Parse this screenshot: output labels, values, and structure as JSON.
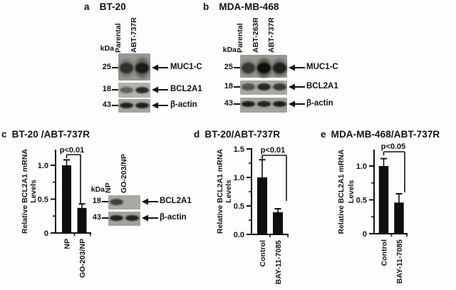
{
  "figure": {
    "background": "#ffffff",
    "text_color": "#121212"
  },
  "panel_a": {
    "label": "a",
    "title": "BT-20",
    "kda_label": "kDa",
    "lanes": [
      "Parental",
      "ABT-737R"
    ],
    "rows": [
      {
        "marker": "25",
        "protein": "MUC1-C",
        "band_intensities": [
          0.55,
          0.8
        ]
      },
      {
        "marker": "18",
        "protein": "BCL2A1",
        "band_intensities": [
          0.35,
          0.8
        ]
      },
      {
        "marker": "43",
        "protein": "β-actin",
        "band_intensities": [
          0.88,
          0.88
        ]
      }
    ]
  },
  "panel_b": {
    "label": "b",
    "title": "MDA-MB-468",
    "kda_label": "kDa",
    "lanes": [
      "Parental",
      "ABT-263R",
      "ABT-737R"
    ],
    "rows": [
      {
        "marker": "25",
        "protein": "MUC1-C",
        "band_intensities": [
          0.5,
          1.0,
          0.75
        ]
      },
      {
        "marker": "18",
        "protein": "BCL2A1",
        "band_intensities": [
          0.45,
          0.8,
          0.65
        ]
      },
      {
        "marker": "43",
        "protein": "β-actin",
        "band_intensities": [
          0.9,
          0.85,
          0.9
        ]
      }
    ]
  },
  "panel_c": {
    "label": "c",
    "title": "BT-20 /ABT-737R",
    "blot": {
      "kda_label": "kDa",
      "lanes": [
        "NP",
        "GO-203/NP"
      ],
      "rows": [
        {
          "marker": "18",
          "protein": "BCL2A1",
          "band_intensities": [
            0.6,
            0
          ]
        },
        {
          "marker": "43",
          "protein": "β-actin",
          "band_intensities": [
            0.88,
            0.85
          ]
        }
      ]
    }
  },
  "panel_d": {
    "label": "d",
    "title": "BT-20/ABT-737R"
  },
  "panel_e": {
    "label": "e",
    "title": "MDA-MB-468/ABT-737R"
  },
  "chart_data": [
    {
      "panel": "c",
      "type": "bar",
      "title": "BT-20 /ABT-737R",
      "categories": [
        "NP",
        "GO-203/NP"
      ],
      "values": [
        1.0,
        0.37
      ],
      "errors": [
        0.08,
        0.06
      ],
      "ylabel": "Relative BCL2A1 mRNA Levels",
      "yticks": [
        0,
        0.5,
        1.0
      ],
      "ytick_labels": [
        "0",
        "0.5",
        "1.0"
      ],
      "ylim": [
        0,
        1.23
      ],
      "grid": false,
      "legend": null,
      "significance": "p<0.01",
      "bar_color": "#0e0e0e"
    },
    {
      "panel": "d",
      "type": "bar",
      "title": "BT-20/ABT-737R",
      "categories": [
        "Control",
        "BAY-11-7085"
      ],
      "values": [
        1.0,
        0.39
      ],
      "errors": [
        0.31,
        0.06
      ],
      "ylabel": "Relative BCL2A1 mRNA Levels",
      "yticks": [
        0,
        0.5,
        1.0,
        1.5
      ],
      "ytick_labels": [
        "0.0",
        "0.5",
        "1.0",
        "1.5"
      ],
      "ylim": [
        0,
        1.51
      ],
      "grid": false,
      "legend": null,
      "significance": "p<0.01",
      "bar_color": "#0e0e0e"
    },
    {
      "panel": "e",
      "type": "bar",
      "title": "MDA-MB-468/ABT-737R",
      "categories": [
        "Control",
        "BAY-11-7085"
      ],
      "values": [
        1.0,
        0.46
      ],
      "errors": [
        0.11,
        0.13
      ],
      "ylabel": "Relative BCL2A1 mRNA Levels",
      "yticks": [
        0,
        0.5,
        1.0
      ],
      "ytick_labels": [
        "0",
        "0.5",
        "1.0"
      ],
      "ylim": [
        0,
        1.24
      ],
      "grid": false,
      "legend": null,
      "significance": "p<0.05",
      "bar_color": "#0e0e0e"
    }
  ]
}
